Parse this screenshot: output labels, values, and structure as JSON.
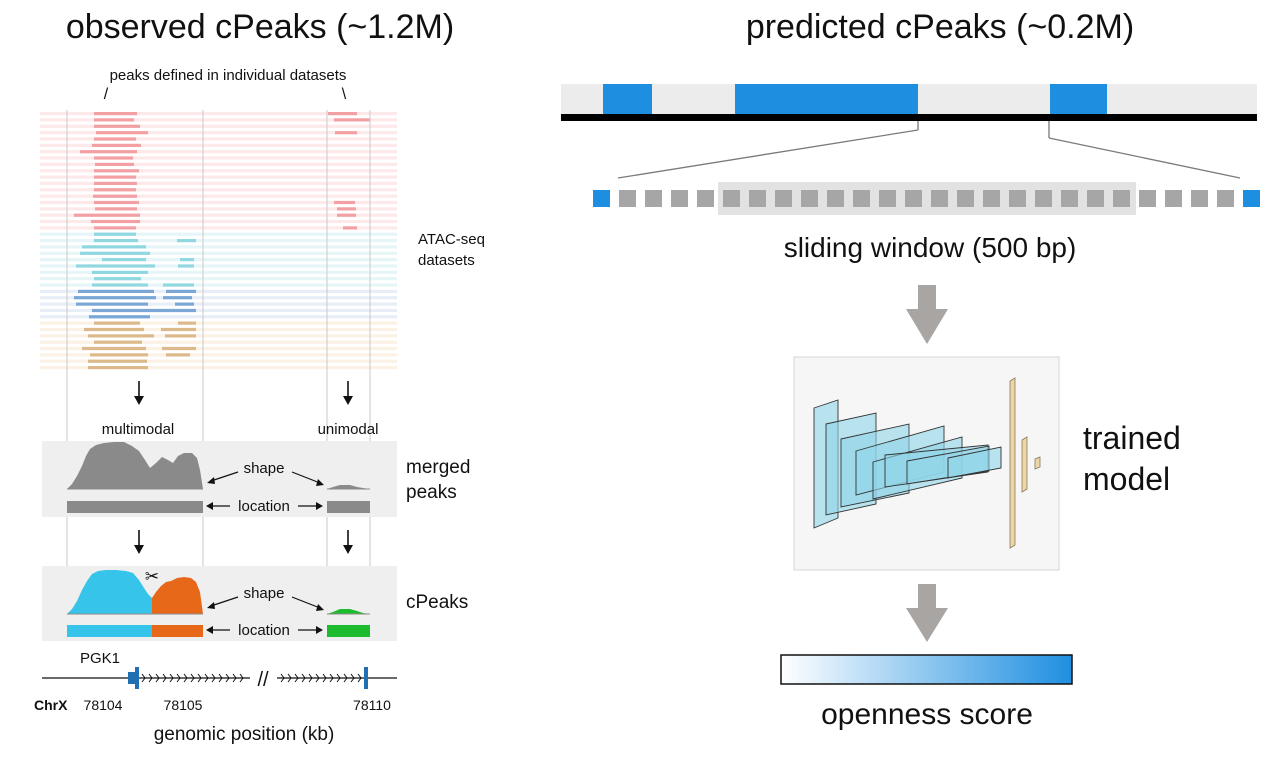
{
  "left_panel": {
    "title": "observed cPeaks (~1.2M)",
    "peaks_caption": "peaks defined in individual datasets",
    "slash_left": "/",
    "slash_right": "\\",
    "datasets_label_line1": "ATAC-seq",
    "datasets_label_line2": "datasets",
    "multimodal_label": "multimodal",
    "unimodal_label": "unimodal",
    "merged_label_line1": "merged",
    "merged_label_line2": "peaks",
    "cpeaks_label": "cPeaks",
    "shape_label": "shape",
    "location_label": "location",
    "scissors_icon": "✂",
    "gene_label": "PGK1",
    "chrom_label": "ChrX",
    "tick_labels": [
      "78104",
      "78105",
      "78110"
    ],
    "break_mark": "//",
    "xaxis_label": "genomic position (kb)"
  },
  "right_panel": {
    "title": "predicted cPeaks (~0.2M)",
    "sliding_window_label": "sliding window (500 bp)",
    "model_label_line1": "trained",
    "model_label_line2": "model",
    "score_label": "openness score"
  },
  "colors": {
    "track_red": "#f2a0a3",
    "track_teal": "#8fd8df",
    "track_blue": "#7ba7d6",
    "track_tan": "#dcb98a",
    "merged_gray": "#8a8a8a",
    "cpeak_cyan": "#36c4ea",
    "cpeak_orange": "#e8681a",
    "cpeak_green": "#1dbb2e",
    "predicted_blue": "#1e8fe0",
    "window_gray": "#a6a6a6",
    "arrow_gray": "#a8a5a2",
    "gene_blue": "#1f6fb2"
  }
}
